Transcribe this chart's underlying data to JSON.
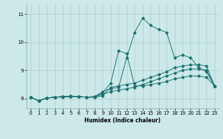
{
  "title": "",
  "xlabel": "Humidex (Indice chaleur)",
  "ylabel": "",
  "background_color": "#cce8e8",
  "grid_color": "#aacccc",
  "line_color": "#1a7070",
  "xlim": [
    -0.5,
    23.5
  ],
  "ylim": [
    7.65,
    11.35
  ],
  "yticks": [
    8,
    9,
    10,
    11
  ],
  "xticks": [
    0,
    1,
    2,
    3,
    4,
    5,
    6,
    7,
    8,
    9,
    10,
    11,
    12,
    13,
    14,
    15,
    16,
    17,
    18,
    19,
    20,
    21,
    22,
    23
  ],
  "series": [
    {
      "x": [
        0,
        1,
        2,
        3,
        4,
        5,
        6,
        7,
        8,
        9,
        10,
        11,
        12,
        13,
        14,
        15,
        16,
        17,
        18,
        19,
        20,
        21,
        22,
        23
      ],
      "y": [
        8.05,
        7.92,
        8.02,
        8.05,
        8.05,
        8.07,
        8.07,
        8.05,
        8.07,
        8.15,
        8.25,
        8.3,
        8.35,
        8.4,
        8.5,
        8.6,
        8.7,
        8.8,
        8.9,
        9.0,
        9.05,
        9.05,
        9.0,
        8.45
      ]
    },
    {
      "x": [
        0,
        1,
        2,
        3,
        4,
        5,
        6,
        7,
        8,
        9,
        10,
        11,
        12,
        13,
        14,
        15,
        16,
        17,
        18,
        19,
        20,
        21,
        22,
        23
      ],
      "y": [
        8.05,
        7.92,
        8.02,
        8.05,
        8.07,
        8.07,
        8.07,
        8.05,
        8.05,
        8.1,
        8.4,
        8.45,
        8.5,
        8.55,
        8.65,
        8.75,
        8.85,
        8.95,
        9.1,
        9.15,
        9.2,
        9.2,
        9.15,
        8.45
      ]
    },
    {
      "x": [
        0,
        1,
        2,
        3,
        4,
        5,
        6,
        7,
        8,
        9,
        10,
        11,
        12,
        13,
        14,
        15,
        16,
        17,
        18,
        19,
        20,
        21,
        22,
        23
      ],
      "y": [
        8.05,
        7.92,
        8.02,
        8.05,
        8.07,
        8.09,
        8.07,
        8.05,
        8.05,
        8.2,
        8.55,
        9.7,
        9.6,
        8.45,
        8.45,
        8.5,
        8.55,
        8.6,
        8.7,
        8.75,
        8.8,
        8.8,
        8.75,
        8.45
      ]
    },
    {
      "x": [
        0,
        1,
        2,
        3,
        4,
        5,
        6,
        7,
        8,
        9,
        10,
        11,
        12,
        13,
        14,
        15,
        16,
        17,
        18,
        19,
        20,
        21,
        22,
        23
      ],
      "y": [
        8.05,
        7.92,
        8.02,
        8.05,
        8.07,
        8.09,
        8.07,
        8.05,
        8.07,
        8.25,
        8.35,
        8.4,
        9.45,
        10.35,
        10.85,
        10.6,
        10.45,
        10.35,
        9.45,
        9.55,
        9.45,
        9.1,
        8.95,
        8.45
      ]
    }
  ]
}
